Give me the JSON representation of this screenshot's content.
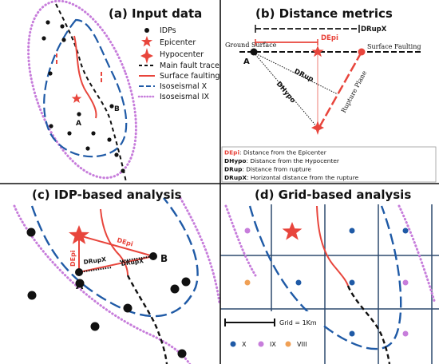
{
  "panel_a": {
    "title": "(a) Input data",
    "legend": {
      "idps": "IDPs",
      "epicenter": "Epicenter",
      "hypocenter": "Hypocenter",
      "main_fault": "Main fault trace",
      "surface_faulting": "Surface faulting",
      "isoseismal_x": "Isoseismal X",
      "isoseismal_ix": "Isoseismal IX"
    },
    "label_a": "A",
    "label_b": "B"
  },
  "panel_b": {
    "title": "(b) Distance metrics",
    "drupx": "DRupX",
    "depi": "DEpi",
    "ground_surface": "Ground Surface",
    "surface_faulting": "Surface Faulting",
    "label_a": "A",
    "drup": "DRup",
    "dhypo": "DHypo",
    "rupture_plane": "Rupture Plane",
    "definitions": [
      {
        "abbr": "DEpi",
        "text": ": Distance from the Epicenter"
      },
      {
        "abbr": "DHypo",
        "text": ": Distance from the Hypocenter"
      },
      {
        "abbr": "DRup",
        "text": ": Distance from rupture"
      },
      {
        "abbr": "DRupX",
        "text": ": Horizontal distance from the rupture"
      }
    ]
  },
  "panel_c": {
    "title": "(c) IDP-based analysis",
    "depi_left": "DEpi",
    "depi_right": "DEpi",
    "drupx_left": "DRupX",
    "drupx_right": "DRupX",
    "label_a": "A",
    "label_b": "B"
  },
  "panel_d": {
    "title": "(d) Grid-based analysis",
    "grid_label": "Grid = 1Km",
    "legend_x": "X",
    "legend_ix": "IX",
    "legend_viii": "VIII"
  },
  "colors": {
    "red": "#e8453c",
    "blue": "#1f5aa6",
    "purple": "#c77ddb",
    "orange": "#f0a055",
    "black": "#111111"
  }
}
